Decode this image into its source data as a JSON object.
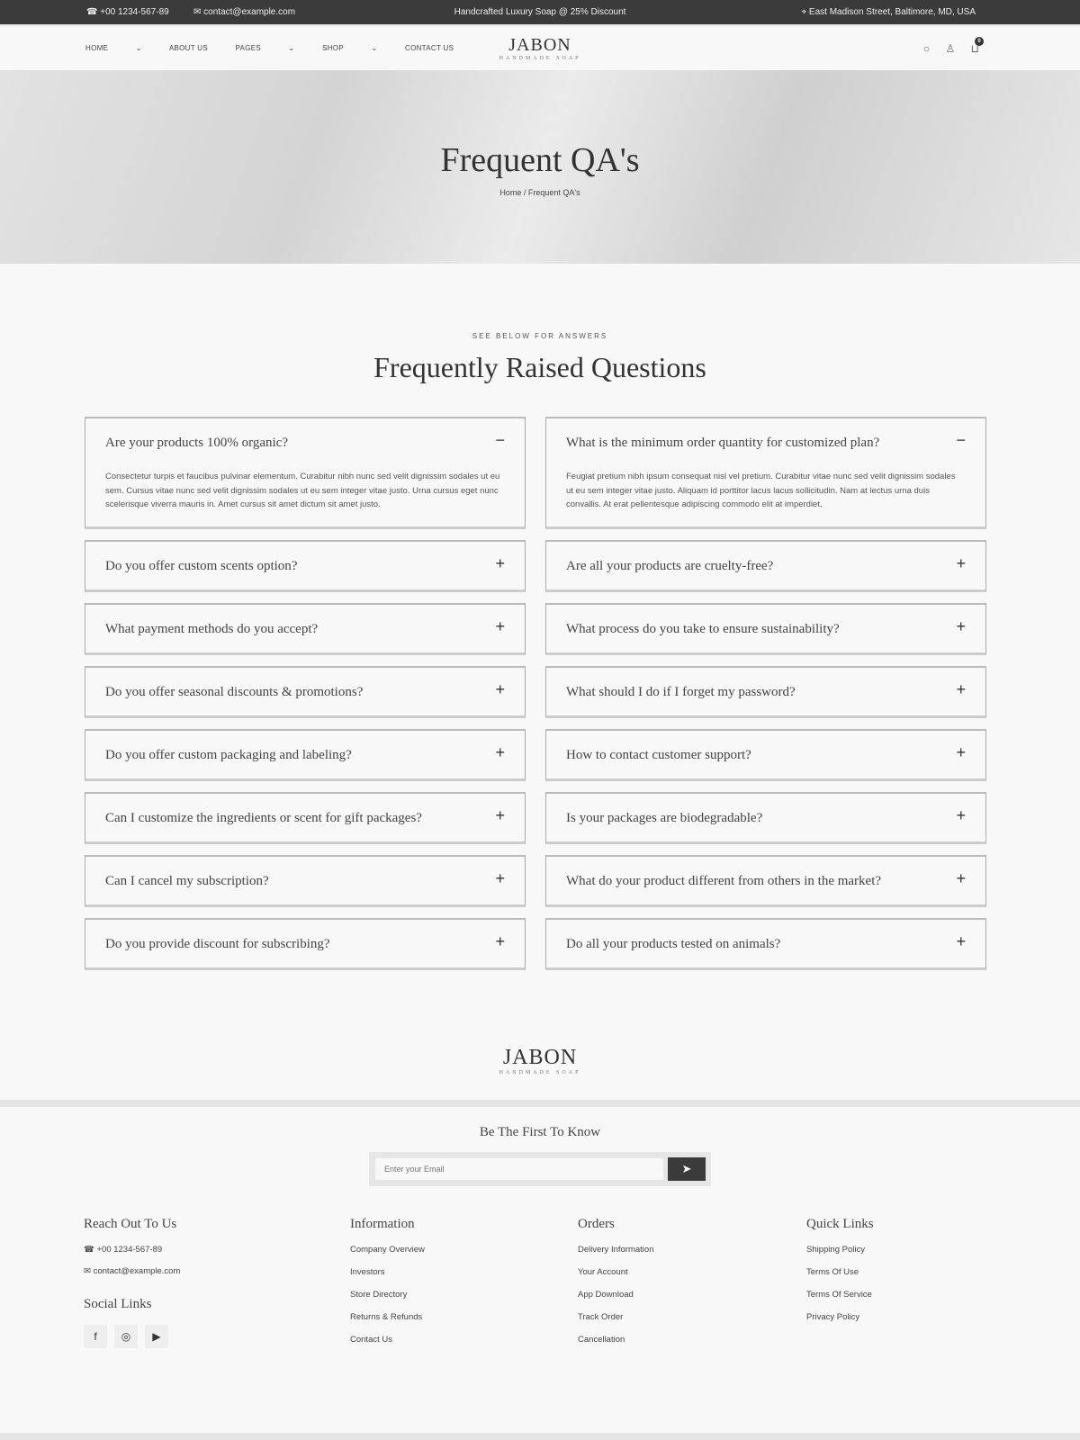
{
  "topbar": {
    "phone": "+00 1234-567-89",
    "email": "contact@example.com",
    "promo": "Handcrafted Luxury Soap @ 25% Discount",
    "address": "East Madison Street, Baltimore, MD, USA"
  },
  "nav": {
    "items": [
      "HOME",
      "ABOUT US",
      "PAGES",
      "SHOP",
      "CONTACT US"
    ],
    "cart_count": "0"
  },
  "brand": {
    "name": "JABON",
    "tagline": "HANDMADE SOAP"
  },
  "hero": {
    "title": "Frequent QA's",
    "breadcrumb_home": "Home",
    "breadcrumb_sep": "/",
    "breadcrumb_current": "Frequent QA's"
  },
  "section": {
    "eyebrow": "SEE BELOW FOR ANSWERS",
    "title": "Frequently Raised Questions"
  },
  "faq_left": [
    {
      "q": "Are your products 100% organic?",
      "open": true,
      "a": "Consectetur turpis et faucibus pulvinar elementum. Curabitur nibh nunc sed velit dignissim sodales ut eu sem. Cursus vitae nunc sed velit dignissim sodales ut eu sem integer vitae justo. Urna cursus eget nunc scelerisque viverra mauris in. Amet cursus sit amet dictum sit amet justo."
    },
    {
      "q": "Do you offer custom scents option?",
      "open": false
    },
    {
      "q": "What payment methods do you accept?",
      "open": false
    },
    {
      "q": "Do you offer seasonal discounts & promotions?",
      "open": false
    },
    {
      "q": "Do you offer custom packaging and labeling?",
      "open": false
    },
    {
      "q": "Can I customize the ingredients or scent for gift packages?",
      "open": false
    },
    {
      "q": "Can I cancel my subscription?",
      "open": false
    },
    {
      "q": "Do you provide discount for subscribing?",
      "open": false
    }
  ],
  "faq_right": [
    {
      "q": "What is the minimum order quantity for customized plan?",
      "open": true,
      "a": "Feugiat pretium nibh ipsum consequat nisl vel pretium. Curabitur vitae nunc sed velit dignissim sodales ut eu sem integer vitae justo. Aliquam id porttitor lacus lacus sollicitudin. Nam at lectus urna duis convallis. At erat pellentesque adipiscing commodo elit at imperdiet."
    },
    {
      "q": "Are all your products are cruelty-free?",
      "open": false
    },
    {
      "q": "What process do you take to ensure sustainability?",
      "open": false
    },
    {
      "q": "What should I do if I forget my password?",
      "open": false
    },
    {
      "q": "How to contact customer support?",
      "open": false
    },
    {
      "q": "Is your packages are biodegradable?",
      "open": false
    },
    {
      "q": "What do your product different from others in the market?",
      "open": false
    },
    {
      "q": "Do all your products tested on animals?",
      "open": false
    }
  ],
  "newsletter": {
    "title": "Be The First To Know",
    "placeholder": "Enter your Email"
  },
  "footer": {
    "reach": {
      "title": "Reach Out To Us",
      "phone": "+00 1234-567-89",
      "email": "contact@example.com"
    },
    "social_title": "Social Links",
    "information": {
      "title": "Information",
      "links": [
        "Company Overview",
        "Investors",
        "Store Directory",
        "Returns & Refunds",
        "Contact Us"
      ]
    },
    "orders": {
      "title": "Orders",
      "links": [
        "Delivery Information",
        "Your Account",
        "App Download",
        "Track Order",
        "Cancellation"
      ]
    },
    "quick": {
      "title": "Quick Links",
      "links": [
        "Shipping Policy",
        "Terms Of Use",
        "Terms Of Service",
        "Privacy Policy"
      ]
    }
  }
}
